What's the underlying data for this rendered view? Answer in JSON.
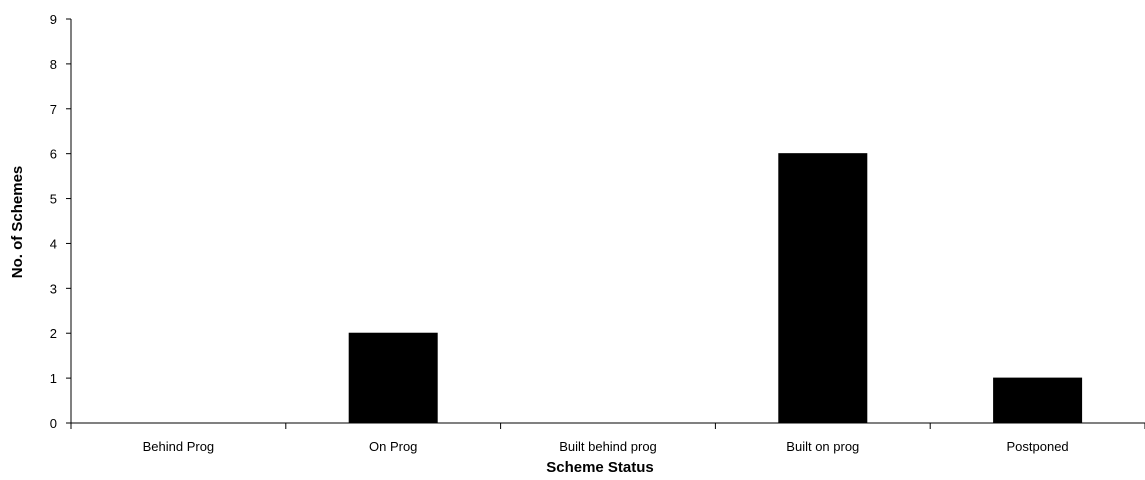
{
  "chart_data": {
    "type": "bar",
    "title": "",
    "categories": [
      "Behind Prog",
      "On Prog",
      "Built behind prog",
      "Built on prog",
      "Postponed"
    ],
    "values": [
      0,
      2,
      0,
      6,
      1
    ],
    "xlabel": "Scheme Status",
    "ylabel": "No. of Schemes",
    "ylim": [
      0,
      9
    ],
    "yticks": [
      0,
      1,
      2,
      3,
      4,
      5,
      6,
      7,
      8,
      9
    ],
    "grid": false,
    "legend": "none",
    "bar_color": "#000000"
  }
}
